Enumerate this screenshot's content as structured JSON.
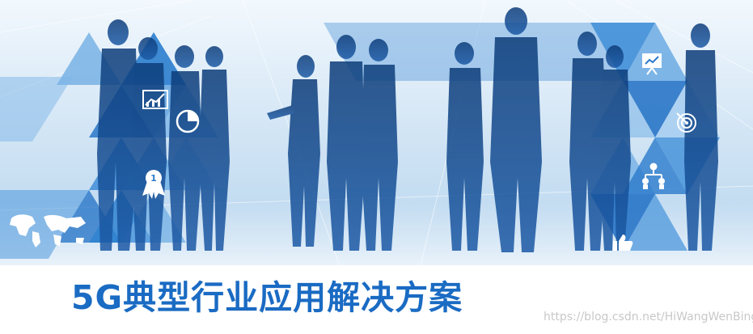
{
  "banner": {
    "title": "5G典型行业应用解决方案",
    "watermark": "https://blog.csdn.net/HiWangWenBing",
    "left_icons": [
      "growth-chart-icon",
      "pie-chart-icon",
      "award-medal-icon",
      "world-map-icon"
    ],
    "right_icons": [
      "presentation-board-icon",
      "target-icon",
      "org-chart-icon",
      "thumbs-up-icon"
    ],
    "colors": {
      "title": "#1a6bc3",
      "triangle_dark": "#1f6fc4",
      "triangle_mid": "#3f8ed8",
      "triangle_light": "#7db6e8",
      "background": "#d3e6f6"
    }
  }
}
